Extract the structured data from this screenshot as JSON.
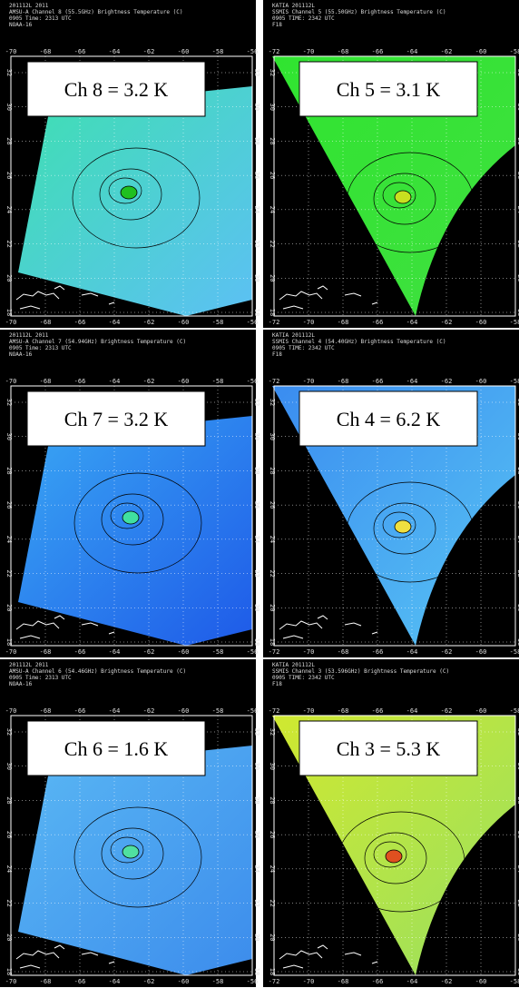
{
  "panels": [
    {
      "header": [
        "201112L 2011",
        "AMSU-A Channel 8 (55.5GHz) Brightness Temperature (C)",
        "0905 Time: 2313 UTC",
        "NOAA-16"
      ],
      "label": "Ch 8 = 3.2 K",
      "x_ticks": [
        "-70",
        "-68",
        "-66",
        "-64",
        "-62",
        "-60",
        "-58",
        "-56"
      ],
      "y_ticks": [
        "32",
        "30",
        "28",
        "26",
        "24",
        "22",
        "20",
        "18"
      ]
    },
    {
      "header": [
        "KATIA 201112L",
        "SSMIS Channel 5 (55.50GHz) Brightness Temperature (C)",
        "0905 TIME: 2342 UTC",
        "F18"
      ],
      "label": "Ch 5 = 3.1 K",
      "x_ticks": [
        "-72",
        "-70",
        "-68",
        "-66",
        "-64",
        "-62",
        "-60",
        "-58"
      ],
      "y_ticks": [
        "32",
        "30",
        "28",
        "26",
        "24",
        "22",
        "20",
        "18"
      ]
    },
    {
      "header": [
        "201112L 2011",
        "AMSU-A Channel 7 (54.94GHz) Brightness Temperature (C)",
        "0905 Time: 2313 UTC",
        "NOAA-16"
      ],
      "label": "Ch 7 = 3.2 K",
      "x_ticks": [
        "-70",
        "-68",
        "-66",
        "-64",
        "-62",
        "-60",
        "-58",
        "-56"
      ],
      "y_ticks": [
        "32",
        "30",
        "28",
        "26",
        "24",
        "22",
        "20",
        "18"
      ]
    },
    {
      "header": [
        "KATIA 201112L",
        "SSMIS Channel 4 (54.40GHz) Brightness Temperature (C)",
        "0905 TIME: 2342 UTC",
        "F18"
      ],
      "label": "Ch 4 = 6.2 K",
      "x_ticks": [
        "-72",
        "-70",
        "-68",
        "-66",
        "-64",
        "-62",
        "-60",
        "-58"
      ],
      "y_ticks": [
        "32",
        "30",
        "28",
        "26",
        "24",
        "22",
        "20",
        "18"
      ]
    },
    {
      "header": [
        "201112L 2011",
        "AMSU-A Channel 6 (54.46GHz) Brightness Temperature (C)",
        "0905 Time: 2313 UTC",
        "NOAA-16"
      ],
      "label": "Ch 6 = 1.6 K",
      "x_ticks": [
        "-70",
        "-68",
        "-66",
        "-64",
        "-62",
        "-60",
        "-58",
        "-56"
      ],
      "y_ticks": [
        "32",
        "30",
        "28",
        "26",
        "24",
        "22",
        "20",
        "18"
      ]
    },
    {
      "header": [
        "KATIA 201112L",
        "SSMIS Channel 3 (53.596GHz) Brightness Temperature (C)",
        "0905 TIME: 2342 UTC",
        "F18"
      ],
      "label": "Ch 3 = 5.3 K",
      "x_ticks": [
        "-72",
        "-70",
        "-68",
        "-66",
        "-64",
        "-62",
        "-60",
        "-58"
      ],
      "y_ticks": [
        "32",
        "30",
        "28",
        "26",
        "24",
        "22",
        "20",
        "18"
      ]
    }
  ]
}
